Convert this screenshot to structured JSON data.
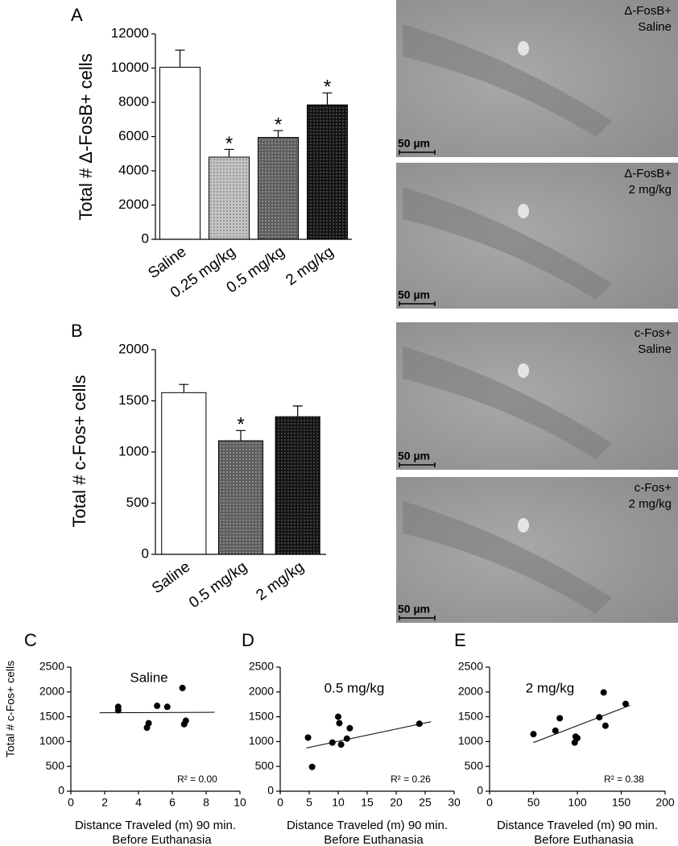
{
  "chart_data": [
    {
      "type": "bar",
      "panel": "A",
      "ylabel": "Total # Δ-FosB+ cells",
      "categories": [
        "Saline",
        "0.25 mg/kg",
        "0.5 mg/kg",
        "2 mg/kg"
      ],
      "values": [
        10050,
        4800,
        5950,
        7850
      ],
      "errors": [
        1000,
        450,
        400,
        700
      ],
      "colors": [
        "#ffffff",
        "#c4c4c4",
        "#5e5e5e",
        "#141414"
      ],
      "significance": [
        null,
        "*",
        "*",
        "*"
      ],
      "ylim": [
        0,
        12000
      ],
      "yticks": [
        0,
        2000,
        4000,
        6000,
        8000,
        10000,
        12000
      ],
      "grid": false
    },
    {
      "type": "bar",
      "panel": "B",
      "ylabel": "Total # c-Fos+ cells",
      "categories": [
        "Saline",
        "0.5 mg/kg",
        "2 mg/kg"
      ],
      "values": [
        1580,
        1110,
        1345
      ],
      "errors": [
        80,
        100,
        105
      ],
      "colors": [
        "#ffffff",
        "#5e5e5e",
        "#141414"
      ],
      "significance": [
        null,
        "*",
        null
      ],
      "ylim": [
        0,
        2000
      ],
      "yticks": [
        0,
        500,
        1000,
        1500,
        2000
      ],
      "grid": false
    },
    {
      "type": "scatter",
      "panel": "C",
      "title": "Saline",
      "ylabel": "Total # c-Fos+ cells",
      "xlabel": [
        "Distance Traveled (m) 90 min.",
        "Before Euthanasia"
      ],
      "x": [
        2.8,
        2.8,
        4.5,
        4.6,
        5.1,
        5.7,
        6.6,
        6.7,
        6.8
      ],
      "values": [
        1700,
        1630,
        1280,
        1370,
        1720,
        1700,
        2080,
        1350,
        1420
      ],
      "trendline": {
        "x": [
          1.7,
          8.5
        ],
        "values": [
          1580,
          1590
        ]
      },
      "annotation": "R² = 0.00",
      "xlim": [
        0,
        10
      ],
      "xticks": [
        0,
        2,
        4,
        6,
        8,
        10
      ],
      "ylim": [
        0,
        2500
      ],
      "yticks": [
        0,
        500,
        1000,
        1500,
        2000,
        2500
      ],
      "color": "#000000"
    },
    {
      "type": "scatter",
      "panel": "D",
      "title": "0.5 mg/kg",
      "xlabel": [
        "Distance Traveled (m) 90 min.",
        "Before Euthanasia"
      ],
      "x": [
        4.8,
        5.5,
        9,
        10,
        10.2,
        10.5,
        11.5,
        12,
        24
      ],
      "values": [
        1080,
        490,
        980,
        1500,
        1370,
        940,
        1060,
        1270,
        1360
      ],
      "trendline": {
        "x": [
          4.5,
          26
        ],
        "values": [
          870,
          1400
        ]
      },
      "annotation": "R² = 0.26",
      "xlim": [
        0,
        30
      ],
      "xticks": [
        0,
        5,
        10,
        15,
        20,
        25,
        30
      ],
      "ylim": [
        0,
        2500
      ],
      "yticks": [
        0,
        500,
        1000,
        1500,
        2000,
        2500
      ],
      "color": "#000000"
    },
    {
      "type": "scatter",
      "panel": "E",
      "title": "2 mg/kg",
      "xlabel": [
        "Distance Traveled (m) 90 min.",
        "Before Euthanasia"
      ],
      "x": [
        50,
        75,
        80,
        97,
        98,
        100,
        125,
        130,
        132,
        155
      ],
      "values": [
        1150,
        1220,
        1470,
        980,
        1100,
        1070,
        1490,
        1990,
        1320,
        1760
      ],
      "trendline": {
        "x": [
          50,
          160
        ],
        "values": [
          980,
          1730
        ]
      },
      "annotation": "R² = 0.38",
      "xlim": [
        0,
        200
      ],
      "xticks": [
        0,
        50,
        100,
        150,
        200
      ],
      "ylim": [
        0,
        2500
      ],
      "yticks": [
        0,
        500,
        1000,
        1500,
        2000,
        2500
      ],
      "color": "#000000"
    }
  ],
  "micrographs": [
    {
      "label": [
        "Δ-FosB+",
        "Saline"
      ],
      "scale": "50 µm"
    },
    {
      "label": [
        "Δ-FosB+",
        "2 mg/kg"
      ],
      "scale": "50 µm"
    },
    {
      "label": [
        "c-Fos+",
        "Saline"
      ],
      "scale": "50 µm"
    },
    {
      "label": [
        "c-Fos+",
        "2 mg/kg"
      ],
      "scale": "50 µm"
    }
  ]
}
